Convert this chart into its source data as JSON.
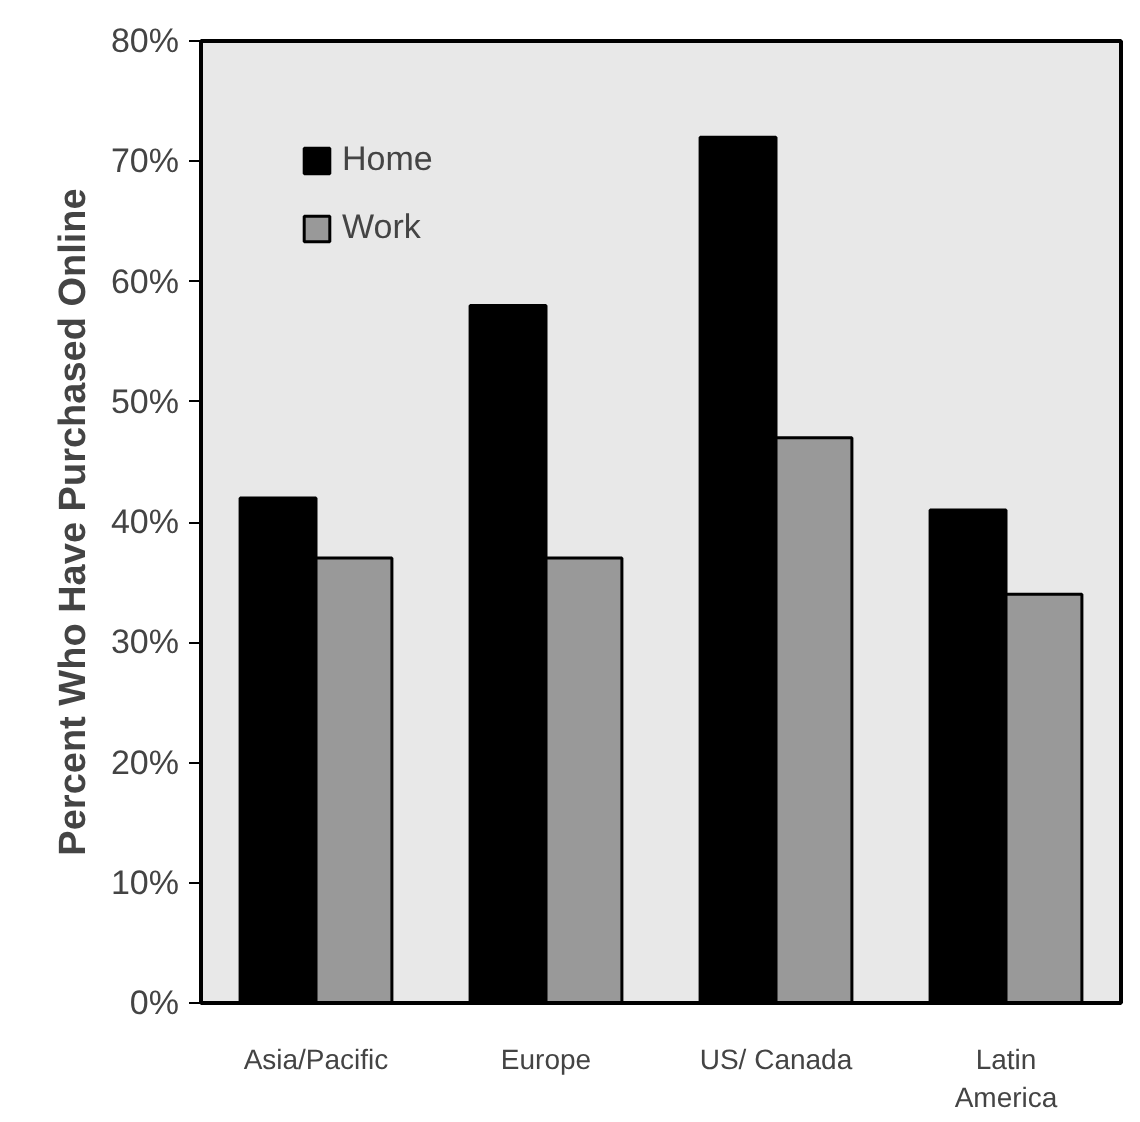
{
  "chart_data": {
    "type": "bar",
    "ylabel": "Percent Who Have Purchased Online",
    "categories": [
      "Asia/Pacific",
      "Europe",
      "US/ Canada",
      "Latin America"
    ],
    "series": [
      {
        "name": "Home",
        "color": "#000000",
        "values": [
          42,
          58,
          72,
          41
        ]
      },
      {
        "name": "Work",
        "color": "#999999",
        "values": [
          37,
          37,
          47,
          34
        ]
      }
    ],
    "ylim": [
      0,
      80
    ],
    "yticks": [
      {
        "value": 0,
        "label": "0%"
      },
      {
        "value": 10,
        "label": "10%"
      },
      {
        "value": 20,
        "label": "20%"
      },
      {
        "value": 30,
        "label": "30%"
      },
      {
        "value": 40,
        "label": "40%"
      },
      {
        "value": 50,
        "label": "50%"
      },
      {
        "value": 60,
        "label": "60%"
      },
      {
        "value": 70,
        "label": "70%"
      },
      {
        "value": 80,
        "label": "80%"
      }
    ],
    "grid": false,
    "legend": "top left"
  }
}
